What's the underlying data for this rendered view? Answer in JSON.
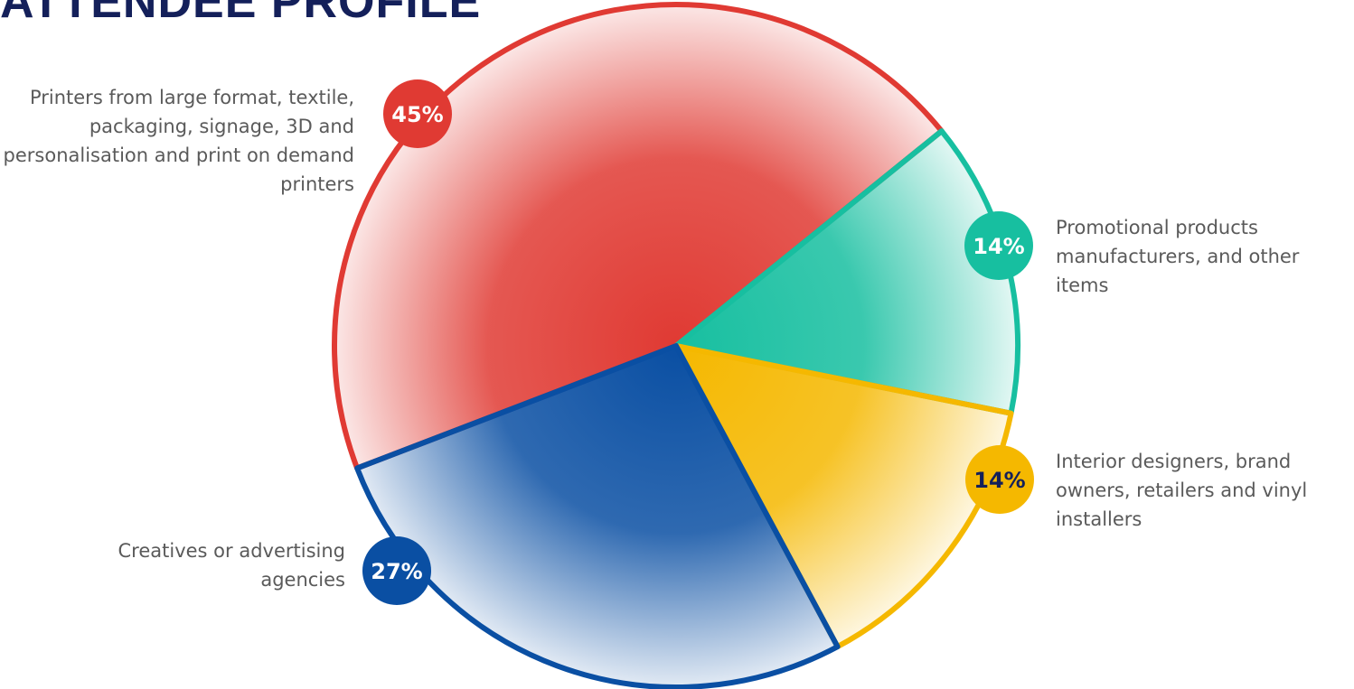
{
  "chart_data": {
    "type": "pie",
    "title": "ATTENDEE PROFILE",
    "categories": [
      "Printers from large format, textile, packaging, signage, 3D and personalisation and print on demand printers",
      "Promotional products manufacturers, and other items",
      "Interior designers, brand owners, retailers and vinyl installers",
      "Creatives or advertising agencies"
    ],
    "values": [
      45,
      14,
      14,
      27
    ],
    "value_labels": [
      "45%",
      "14%",
      "14%",
      "27%"
    ],
    "colors": [
      "#e03a33",
      "#17bfa0",
      "#f5b800",
      "#0a4fa3"
    ]
  }
}
